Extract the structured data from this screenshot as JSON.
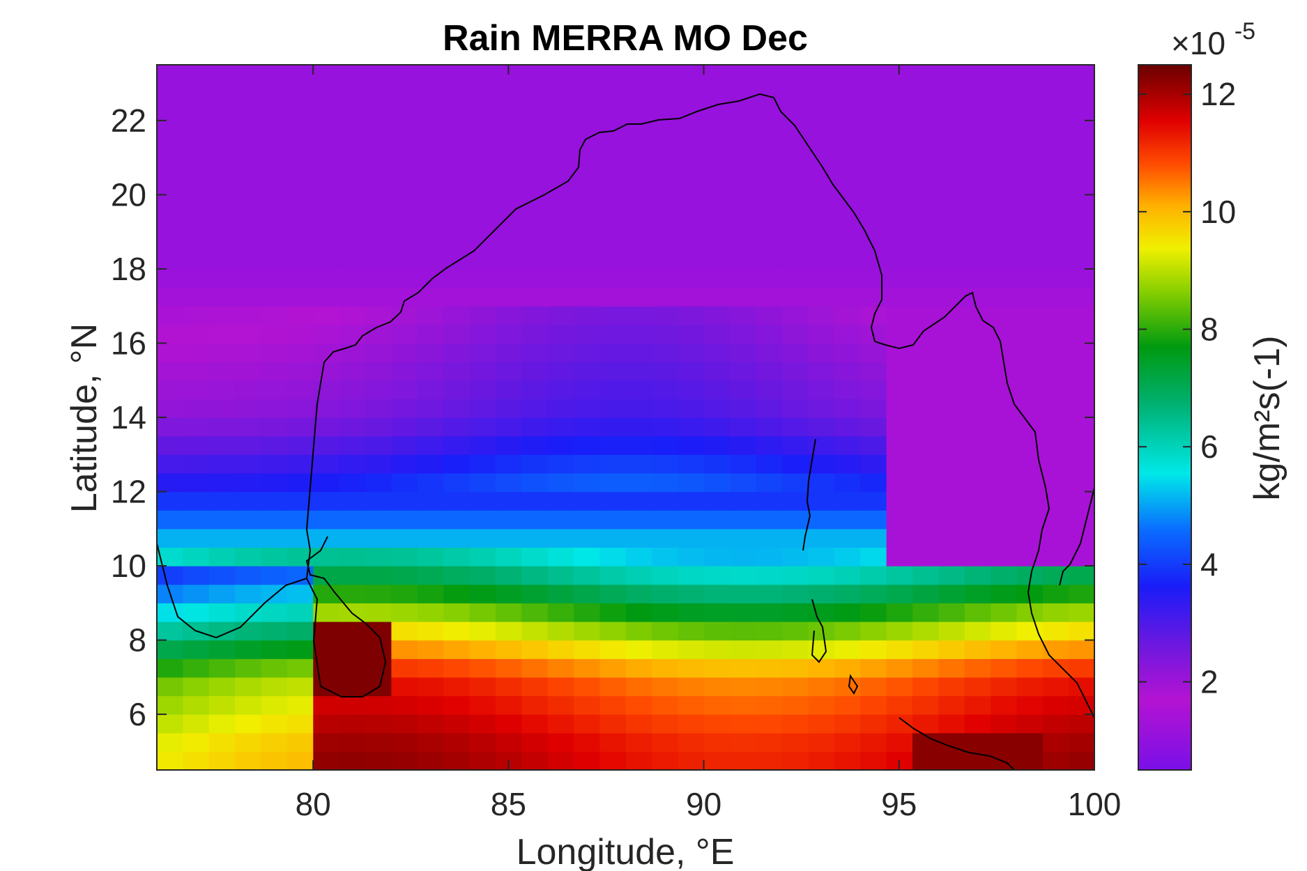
{
  "chart_data": {
    "type": "heatmap",
    "title": "Rain MERRA MO Dec",
    "xlabel": "Longitude, °E",
    "ylabel": "Latitude, °N",
    "xlim": [
      76,
      100
    ],
    "ylim": [
      4.5,
      23.5
    ],
    "x_ticks": [
      80,
      85,
      90,
      95,
      100
    ],
    "y_ticks": [
      6,
      8,
      10,
      12,
      14,
      16,
      18,
      20,
      22
    ],
    "x_tick_labels": [
      "80",
      "85",
      "90",
      "95",
      "100"
    ],
    "y_tick_labels": [
      "6",
      "8",
      "10",
      "12",
      "14",
      "16",
      "18",
      "20",
      "22"
    ],
    "colorbar": {
      "label": "kg/m²s(-1)",
      "multiplier": "×10",
      "multiplier_exponent": "-5",
      "range": [
        0.5,
        12.5
      ],
      "ticks": [
        2,
        4,
        6,
        8,
        10,
        12
      ],
      "tick_labels": [
        "2",
        "4",
        "6",
        "8",
        "10",
        "12"
      ],
      "colormap": "hsv-like (purple → blue → cyan → green → yellow → red → dark red)"
    },
    "grid_resolution": {
      "lon": 0.667,
      "lat": 0.5
    },
    "field_summary": {
      "description": "Rainfall rate (×1e-5 kg/m²/s), December climatology",
      "lat_rows": [
        {
          "lat": 22,
          "typical": 1.0
        },
        {
          "lat": 18,
          "typical": 1.0
        },
        {
          "lat": 16,
          "typical": 1.5
        },
        {
          "lat": 14,
          "typical": 2.0
        },
        {
          "lat": 12,
          "typical": 3.5
        },
        {
          "lat": 10,
          "typical": 6.0
        },
        {
          "lat": 9,
          "typical": 7.5
        },
        {
          "lat": 8,
          "typical": 9.0
        },
        {
          "lat": 7,
          "typical": 10.5
        },
        {
          "lat": 6,
          "typical": 11.0
        },
        {
          "lat": 5,
          "typical": 11.5
        }
      ],
      "max_value_locations": [
        "Sri Lanka east (≈81°E, 7.5°N)",
        "≈96–98°E, 5°N"
      ]
    }
  }
}
